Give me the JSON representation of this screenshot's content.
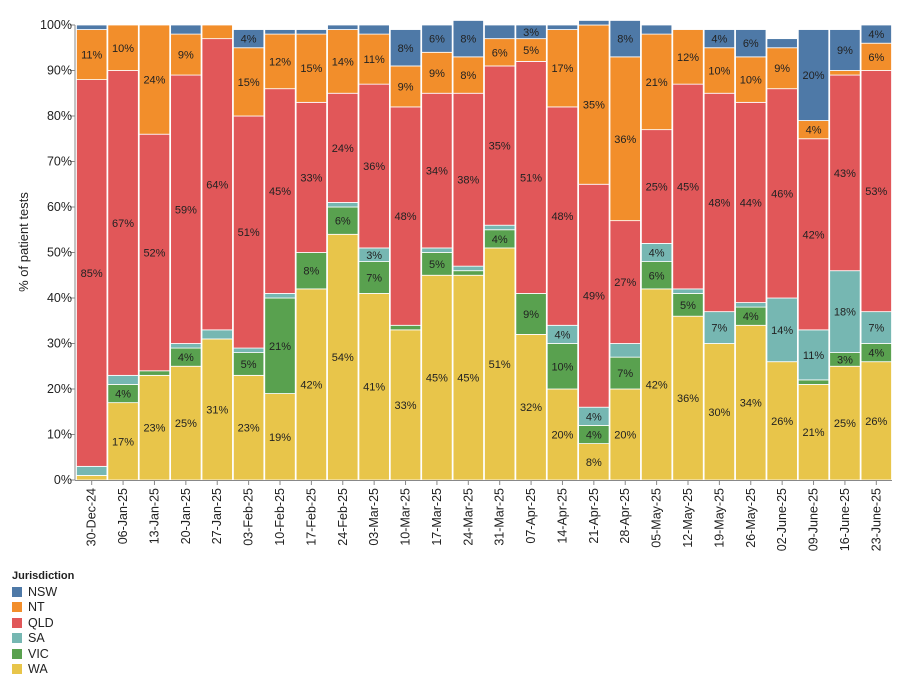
{
  "chart_data": {
    "type": "bar",
    "stacked": true,
    "normalized": true,
    "ylabel": "% of patient tests",
    "xlabel": "",
    "ylim": [
      0,
      100
    ],
    "yticks": [
      "0%",
      "10%",
      "20%",
      "30%",
      "40%",
      "50%",
      "60%",
      "70%",
      "80%",
      "90%",
      "100%"
    ],
    "categories": [
      "30-Dec-24",
      "06-Jan-25",
      "13-Jan-25",
      "20-Jan-25",
      "27-Jan-25",
      "03-Feb-25",
      "10-Feb-25",
      "17-Feb-25",
      "24-Feb-25",
      "03-Mar-25",
      "10-Mar-25",
      "17-Mar-25",
      "24-Mar-25",
      "31-Mar-25",
      "07-Apr-25",
      "14-Apr-25",
      "21-Apr-25",
      "28-Apr-25",
      "05-May-25",
      "12-May-25",
      "19-May-25",
      "26-May-25",
      "02-June-25",
      "09-June-25",
      "16-June-25",
      "23-June-25"
    ],
    "series": [
      {
        "name": "WA",
        "color": "#e8c54a",
        "values": [
          1,
          17,
          23,
          25,
          31,
          23,
          19,
          42,
          54,
          41,
          33,
          45,
          45,
          51,
          32,
          20,
          8,
          20,
          42,
          36,
          30,
          34,
          26,
          21,
          25,
          26
        ]
      },
      {
        "name": "VIC",
        "color": "#59a14f",
        "values": [
          0,
          4,
          1,
          4,
          0,
          5,
          21,
          8,
          6,
          7,
          1,
          5,
          1,
          4,
          9,
          10,
          4,
          7,
          6,
          5,
          0,
          4,
          0,
          1,
          3,
          4
        ]
      },
      {
        "name": "SA",
        "color": "#76b7b2",
        "values": [
          2,
          2,
          0,
          1,
          2,
          1,
          1,
          0,
          1,
          3,
          0,
          1,
          1,
          1,
          0,
          4,
          4,
          3,
          4,
          1,
          7,
          1,
          14,
          11,
          18,
          7
        ]
      },
      {
        "name": "QLD",
        "color": "#e15759",
        "values": [
          85,
          67,
          52,
          59,
          64,
          51,
          45,
          33,
          24,
          36,
          48,
          34,
          38,
          35,
          51,
          48,
          49,
          27,
          25,
          45,
          48,
          44,
          46,
          42,
          43,
          53
        ]
      },
      {
        "name": "NT",
        "color": "#f28e2b",
        "values": [
          11,
          10,
          24,
          9,
          3,
          15,
          12,
          15,
          14,
          11,
          9,
          9,
          8,
          6,
          5,
          17,
          35,
          36,
          21,
          12,
          10,
          10,
          9,
          4,
          1,
          6
        ]
      },
      {
        "name": "NSW",
        "color": "#4e79a7",
        "values": [
          1,
          0,
          0,
          2,
          0,
          4,
          1,
          1,
          1,
          2,
          8,
          6,
          8,
          3,
          3,
          1,
          1,
          8,
          2,
          0,
          4,
          6,
          2,
          20,
          9,
          4
        ]
      }
    ],
    "data_labels": [
      {
        "series": "WA",
        "labels": [
          "",
          "17%",
          "23%",
          "25%",
          "31%",
          "23%",
          "19%",
          "42%",
          "54%",
          "41%",
          "33%",
          "45%",
          "45%",
          "51%",
          "32%",
          "20%",
          "8%",
          "20%",
          "42%",
          "36%",
          "30%",
          "34%",
          "26%",
          "21%",
          "25%",
          "26%"
        ]
      },
      {
        "series": "VIC",
        "labels": [
          "",
          "4%",
          "",
          "4%",
          "",
          "5%",
          "21%",
          "8%",
          "6%",
          "7%",
          "",
          "5%",
          "",
          "4%",
          "9%",
          "10%",
          "4%",
          "7%",
          "6%",
          "5%",
          "",
          "4%",
          "",
          "",
          "3%",
          "4%"
        ]
      },
      {
        "series": "SA",
        "labels": [
          "",
          "",
          "",
          "",
          "",
          "",
          "",
          "",
          "",
          "3%",
          "",
          "",
          "",
          "",
          "",
          "4%",
          "4%",
          "",
          "4%",
          "",
          "7%",
          "",
          "14%",
          "11%",
          "18%",
          "7%"
        ]
      },
      {
        "series": "QLD",
        "labels": [
          "85%",
          "67%",
          "52%",
          "59%",
          "64%",
          "51%",
          "45%",
          "33%",
          "24%",
          "36%",
          "48%",
          "34%",
          "38%",
          "35%",
          "51%",
          "48%",
          "49%",
          "27%",
          "25%",
          "45%",
          "48%",
          "44%",
          "46%",
          "42%",
          "43%",
          "53%"
        ]
      },
      {
        "series": "NT",
        "labels": [
          "11%",
          "10%",
          "24%",
          "9%",
          "",
          "15%",
          "12%",
          "15%",
          "14%",
          "11%",
          "9%",
          "9%",
          "8%",
          "6%",
          "5%",
          "17%",
          "35%",
          "36%",
          "21%",
          "12%",
          "10%",
          "10%",
          "9%",
          "4%",
          "",
          "6%"
        ]
      },
      {
        "series": "NSW",
        "labels": [
          "",
          "",
          "",
          "",
          "",
          "4%",
          "",
          "",
          "",
          "",
          "8%",
          "6%",
          "8%",
          "",
          "3%",
          "",
          "",
          "8%",
          "",
          "",
          "4%",
          "6%",
          "",
          "20%",
          "9%",
          "4%"
        ]
      }
    ],
    "legend": {
      "title": "Jurisdiction",
      "position": "bottom-left",
      "order": [
        "NSW",
        "NT",
        "QLD",
        "SA",
        "VIC",
        "WA"
      ]
    }
  }
}
